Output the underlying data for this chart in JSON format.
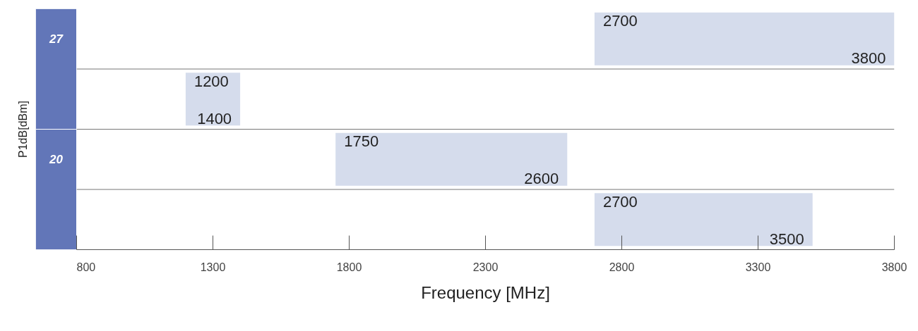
{
  "chart_data": {
    "type": "bar",
    "orientation": "horizontal",
    "categories": [
      "27",
      null,
      "20",
      null
    ],
    "base": [
      2700,
      1200,
      1750,
      2700
    ],
    "values": [
      1100,
      200,
      850,
      800
    ],
    "color": "#d5dcec",
    "xlim": [
      800,
      3800
    ],
    "xticks": [
      800,
      1300,
      1800,
      2300,
      2800,
      3300,
      3800
    ],
    "xlabel": "Frequency [MHz]",
    "ylabel": "P1dB[dBm]",
    "grid": false,
    "annotations": [
      {
        "text": "2700",
        "x": 2700
      },
      {
        "text": "3800",
        "x": 3800
      },
      {
        "text": "1200",
        "x": 1200
      },
      {
        "text": "1400",
        "x": 1400
      },
      {
        "text": "1750",
        "x": 1750
      },
      {
        "text": "2600",
        "x": 2600
      },
      {
        "text": "2700",
        "x": 2700
      },
      {
        "text": "3500",
        "x": 3500
      }
    ]
  }
}
